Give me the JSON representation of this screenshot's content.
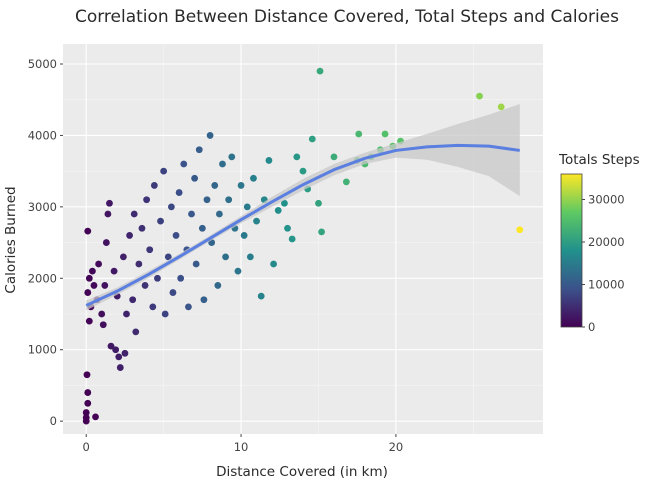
{
  "chart_data": {
    "type": "scatter",
    "title": "Correlation Between Distance Covered, Total Steps and Calories",
    "xlabel": "Distance Covered (in km)",
    "ylabel": "Calories Burned",
    "xlim": [
      -1.5,
      29.5
    ],
    "ylim": [
      -180,
      5280
    ],
    "xticks": [
      0,
      10,
      20
    ],
    "yticks": [
      0,
      1000,
      2000,
      3000,
      4000,
      5000
    ],
    "grid": true,
    "color_legend": {
      "title": "Totals Steps",
      "min": 0,
      "max": 36000,
      "ticks": [
        0,
        10000,
        20000,
        30000
      ],
      "placement": "right",
      "colormap": [
        "#440154",
        "#3b528b",
        "#21918c",
        "#5ec962",
        "#fde725"
      ]
    },
    "smooth_line": {
      "color": "#5b7fe0",
      "x": [
        0,
        2,
        4,
        6,
        8,
        10,
        12,
        14,
        16,
        18,
        20,
        22,
        24,
        26,
        28
      ],
      "y": [
        1620,
        1820,
        2050,
        2300,
        2560,
        2820,
        3070,
        3310,
        3520,
        3680,
        3790,
        3840,
        3860,
        3850,
        3790
      ],
      "band_lower": [
        1550,
        1770,
        2000,
        2260,
        2520,
        2770,
        3000,
        3230,
        3440,
        3600,
        3690,
        3660,
        3560,
        3430,
        3150
      ],
      "band_upper": [
        1690,
        1870,
        2100,
        2340,
        2600,
        2870,
        3140,
        3390,
        3600,
        3760,
        3890,
        4020,
        4160,
        4290,
        4440
      ]
    },
    "points": [
      {
        "x": 0,
        "y": 0,
        "steps": 0
      },
      {
        "x": 0,
        "y": 50,
        "steps": 0
      },
      {
        "x": 0,
        "y": 120,
        "steps": 0
      },
      {
        "x": 0.1,
        "y": 250,
        "steps": 50
      },
      {
        "x": 0.1,
        "y": 400,
        "steps": 80
      },
      {
        "x": 0.05,
        "y": 650,
        "steps": 40
      },
      {
        "x": 0.6,
        "y": 60,
        "steps": 300
      },
      {
        "x": 0.1,
        "y": 2660,
        "steps": 200
      },
      {
        "x": 0.2,
        "y": 1400,
        "steps": 400
      },
      {
        "x": 0.3,
        "y": 1600,
        "steps": 500
      },
      {
        "x": 0.1,
        "y": 1800,
        "steps": 300
      },
      {
        "x": 0.2,
        "y": 2000,
        "steps": 400
      },
      {
        "x": 0.4,
        "y": 2100,
        "steps": 700
      },
      {
        "x": 0.5,
        "y": 1900,
        "steps": 800
      },
      {
        "x": 0.8,
        "y": 2200,
        "steps": 1200
      },
      {
        "x": 0.7,
        "y": 1700,
        "steps": 1100
      },
      {
        "x": 1.0,
        "y": 1500,
        "steps": 1500
      },
      {
        "x": 1.1,
        "y": 1350,
        "steps": 1600
      },
      {
        "x": 1.3,
        "y": 2500,
        "steps": 2000
      },
      {
        "x": 1.5,
        "y": 3050,
        "steps": 2400
      },
      {
        "x": 1.4,
        "y": 2900,
        "steps": 2200
      },
      {
        "x": 1.6,
        "y": 1050,
        "steps": 2500
      },
      {
        "x": 1.9,
        "y": 1000,
        "steps": 2800
      },
      {
        "x": 2.1,
        "y": 900,
        "steps": 3000
      },
      {
        "x": 2.5,
        "y": 950,
        "steps": 3500
      },
      {
        "x": 2.2,
        "y": 750,
        "steps": 3200
      },
      {
        "x": 1.2,
        "y": 1900,
        "steps": 1800
      },
      {
        "x": 1.8,
        "y": 2100,
        "steps": 2600
      },
      {
        "x": 2.0,
        "y": 1750,
        "steps": 2900
      },
      {
        "x": 2.4,
        "y": 2300,
        "steps": 3500
      },
      {
        "x": 2.6,
        "y": 1500,
        "steps": 3700
      },
      {
        "x": 2.8,
        "y": 2600,
        "steps": 4000
      },
      {
        "x": 3.0,
        "y": 1700,
        "steps": 4300
      },
      {
        "x": 3.2,
        "y": 1250,
        "steps": 4500
      },
      {
        "x": 3.1,
        "y": 2900,
        "steps": 4500
      },
      {
        "x": 3.4,
        "y": 2200,
        "steps": 4800
      },
      {
        "x": 3.6,
        "y": 2700,
        "steps": 5200
      },
      {
        "x": 3.8,
        "y": 1900,
        "steps": 5400
      },
      {
        "x": 3.9,
        "y": 3100,
        "steps": 5600
      },
      {
        "x": 4.1,
        "y": 2400,
        "steps": 6000
      },
      {
        "x": 4.3,
        "y": 1600,
        "steps": 6200
      },
      {
        "x": 4.4,
        "y": 3300,
        "steps": 6400
      },
      {
        "x": 4.6,
        "y": 2000,
        "steps": 6700
      },
      {
        "x": 4.8,
        "y": 2800,
        "steps": 7000
      },
      {
        "x": 5.0,
        "y": 3500,
        "steps": 7200
      },
      {
        "x": 5.1,
        "y": 1500,
        "steps": 7300
      },
      {
        "x": 5.3,
        "y": 2300,
        "steps": 7600
      },
      {
        "x": 5.5,
        "y": 3000,
        "steps": 7900
      },
      {
        "x": 5.6,
        "y": 1800,
        "steps": 8000
      },
      {
        "x": 5.8,
        "y": 2600,
        "steps": 8400
      },
      {
        "x": 6.0,
        "y": 3200,
        "steps": 8600
      },
      {
        "x": 6.1,
        "y": 2000,
        "steps": 8800
      },
      {
        "x": 6.3,
        "y": 3600,
        "steps": 9000
      },
      {
        "x": 6.5,
        "y": 2400,
        "steps": 9400
      },
      {
        "x": 6.6,
        "y": 1600,
        "steps": 9500
      },
      {
        "x": 6.8,
        "y": 2900,
        "steps": 9800
      },
      {
        "x": 7.0,
        "y": 3400,
        "steps": 10100
      },
      {
        "x": 7.1,
        "y": 2200,
        "steps": 10200
      },
      {
        "x": 7.3,
        "y": 3800,
        "steps": 10500
      },
      {
        "x": 7.5,
        "y": 2700,
        "steps": 10800
      },
      {
        "x": 7.6,
        "y": 1700,
        "steps": 10900
      },
      {
        "x": 7.8,
        "y": 3100,
        "steps": 11200
      },
      {
        "x": 8.0,
        "y": 4000,
        "steps": 11500
      },
      {
        "x": 8.1,
        "y": 2500,
        "steps": 11600
      },
      {
        "x": 8.3,
        "y": 3300,
        "steps": 12000
      },
      {
        "x": 8.5,
        "y": 1900,
        "steps": 12200
      },
      {
        "x": 8.6,
        "y": 2900,
        "steps": 12400
      },
      {
        "x": 8.8,
        "y": 3600,
        "steps": 12700
      },
      {
        "x": 9.0,
        "y": 2300,
        "steps": 13000
      },
      {
        "x": 9.2,
        "y": 3100,
        "steps": 13200
      },
      {
        "x": 9.4,
        "y": 3700,
        "steps": 13500
      },
      {
        "x": 9.6,
        "y": 2700,
        "steps": 13800
      },
      {
        "x": 9.8,
        "y": 2100,
        "steps": 14000
      },
      {
        "x": 10.0,
        "y": 3300,
        "steps": 14300
      },
      {
        "x": 10.2,
        "y": 2600,
        "steps": 14600
      },
      {
        "x": 10.4,
        "y": 3000,
        "steps": 14900
      },
      {
        "x": 10.6,
        "y": 2300,
        "steps": 15200
      },
      {
        "x": 10.8,
        "y": 3400,
        "steps": 15500
      },
      {
        "x": 11.0,
        "y": 2800,
        "steps": 15800
      },
      {
        "x": 11.3,
        "y": 1750,
        "steps": 16000
      },
      {
        "x": 11.5,
        "y": 3100,
        "steps": 16400
      },
      {
        "x": 11.8,
        "y": 3650,
        "steps": 16800
      },
      {
        "x": 12.1,
        "y": 2200,
        "steps": 17000
      },
      {
        "x": 12.4,
        "y": 2950,
        "steps": 17600
      },
      {
        "x": 12.8,
        "y": 3050,
        "steps": 18000
      },
      {
        "x": 13.0,
        "y": 2700,
        "steps": 18300
      },
      {
        "x": 13.3,
        "y": 2550,
        "steps": 18600
      },
      {
        "x": 13.6,
        "y": 3700,
        "steps": 19000
      },
      {
        "x": 14.0,
        "y": 3500,
        "steps": 19500
      },
      {
        "x": 14.3,
        "y": 3250,
        "steps": 19800
      },
      {
        "x": 14.6,
        "y": 3950,
        "steps": 20300
      },
      {
        "x": 15.0,
        "y": 3050,
        "steps": 20800
      },
      {
        "x": 15.2,
        "y": 2650,
        "steps": 21000
      },
      {
        "x": 15.1,
        "y": 4900,
        "steps": 21500
      },
      {
        "x": 16.0,
        "y": 3700,
        "steps": 22200
      },
      {
        "x": 16.8,
        "y": 3350,
        "steps": 23000
      },
      {
        "x": 17.5,
        "y": 3650,
        "steps": 23800
      },
      {
        "x": 17.6,
        "y": 4020,
        "steps": 24000
      },
      {
        "x": 18.0,
        "y": 3600,
        "steps": 24300
      },
      {
        "x": 18.4,
        "y": 3700,
        "steps": 24700
      },
      {
        "x": 19.0,
        "y": 3800,
        "steps": 25000
      },
      {
        "x": 19.3,
        "y": 4020,
        "steps": 25500
      },
      {
        "x": 19.8,
        "y": 3850,
        "steps": 25800
      },
      {
        "x": 20.3,
        "y": 3920,
        "steps": 26000
      },
      {
        "x": 25.4,
        "y": 4550,
        "steps": 29300
      },
      {
        "x": 26.8,
        "y": 4400,
        "steps": 30700
      },
      {
        "x": 28.0,
        "y": 2680,
        "steps": 36000
      }
    ]
  }
}
